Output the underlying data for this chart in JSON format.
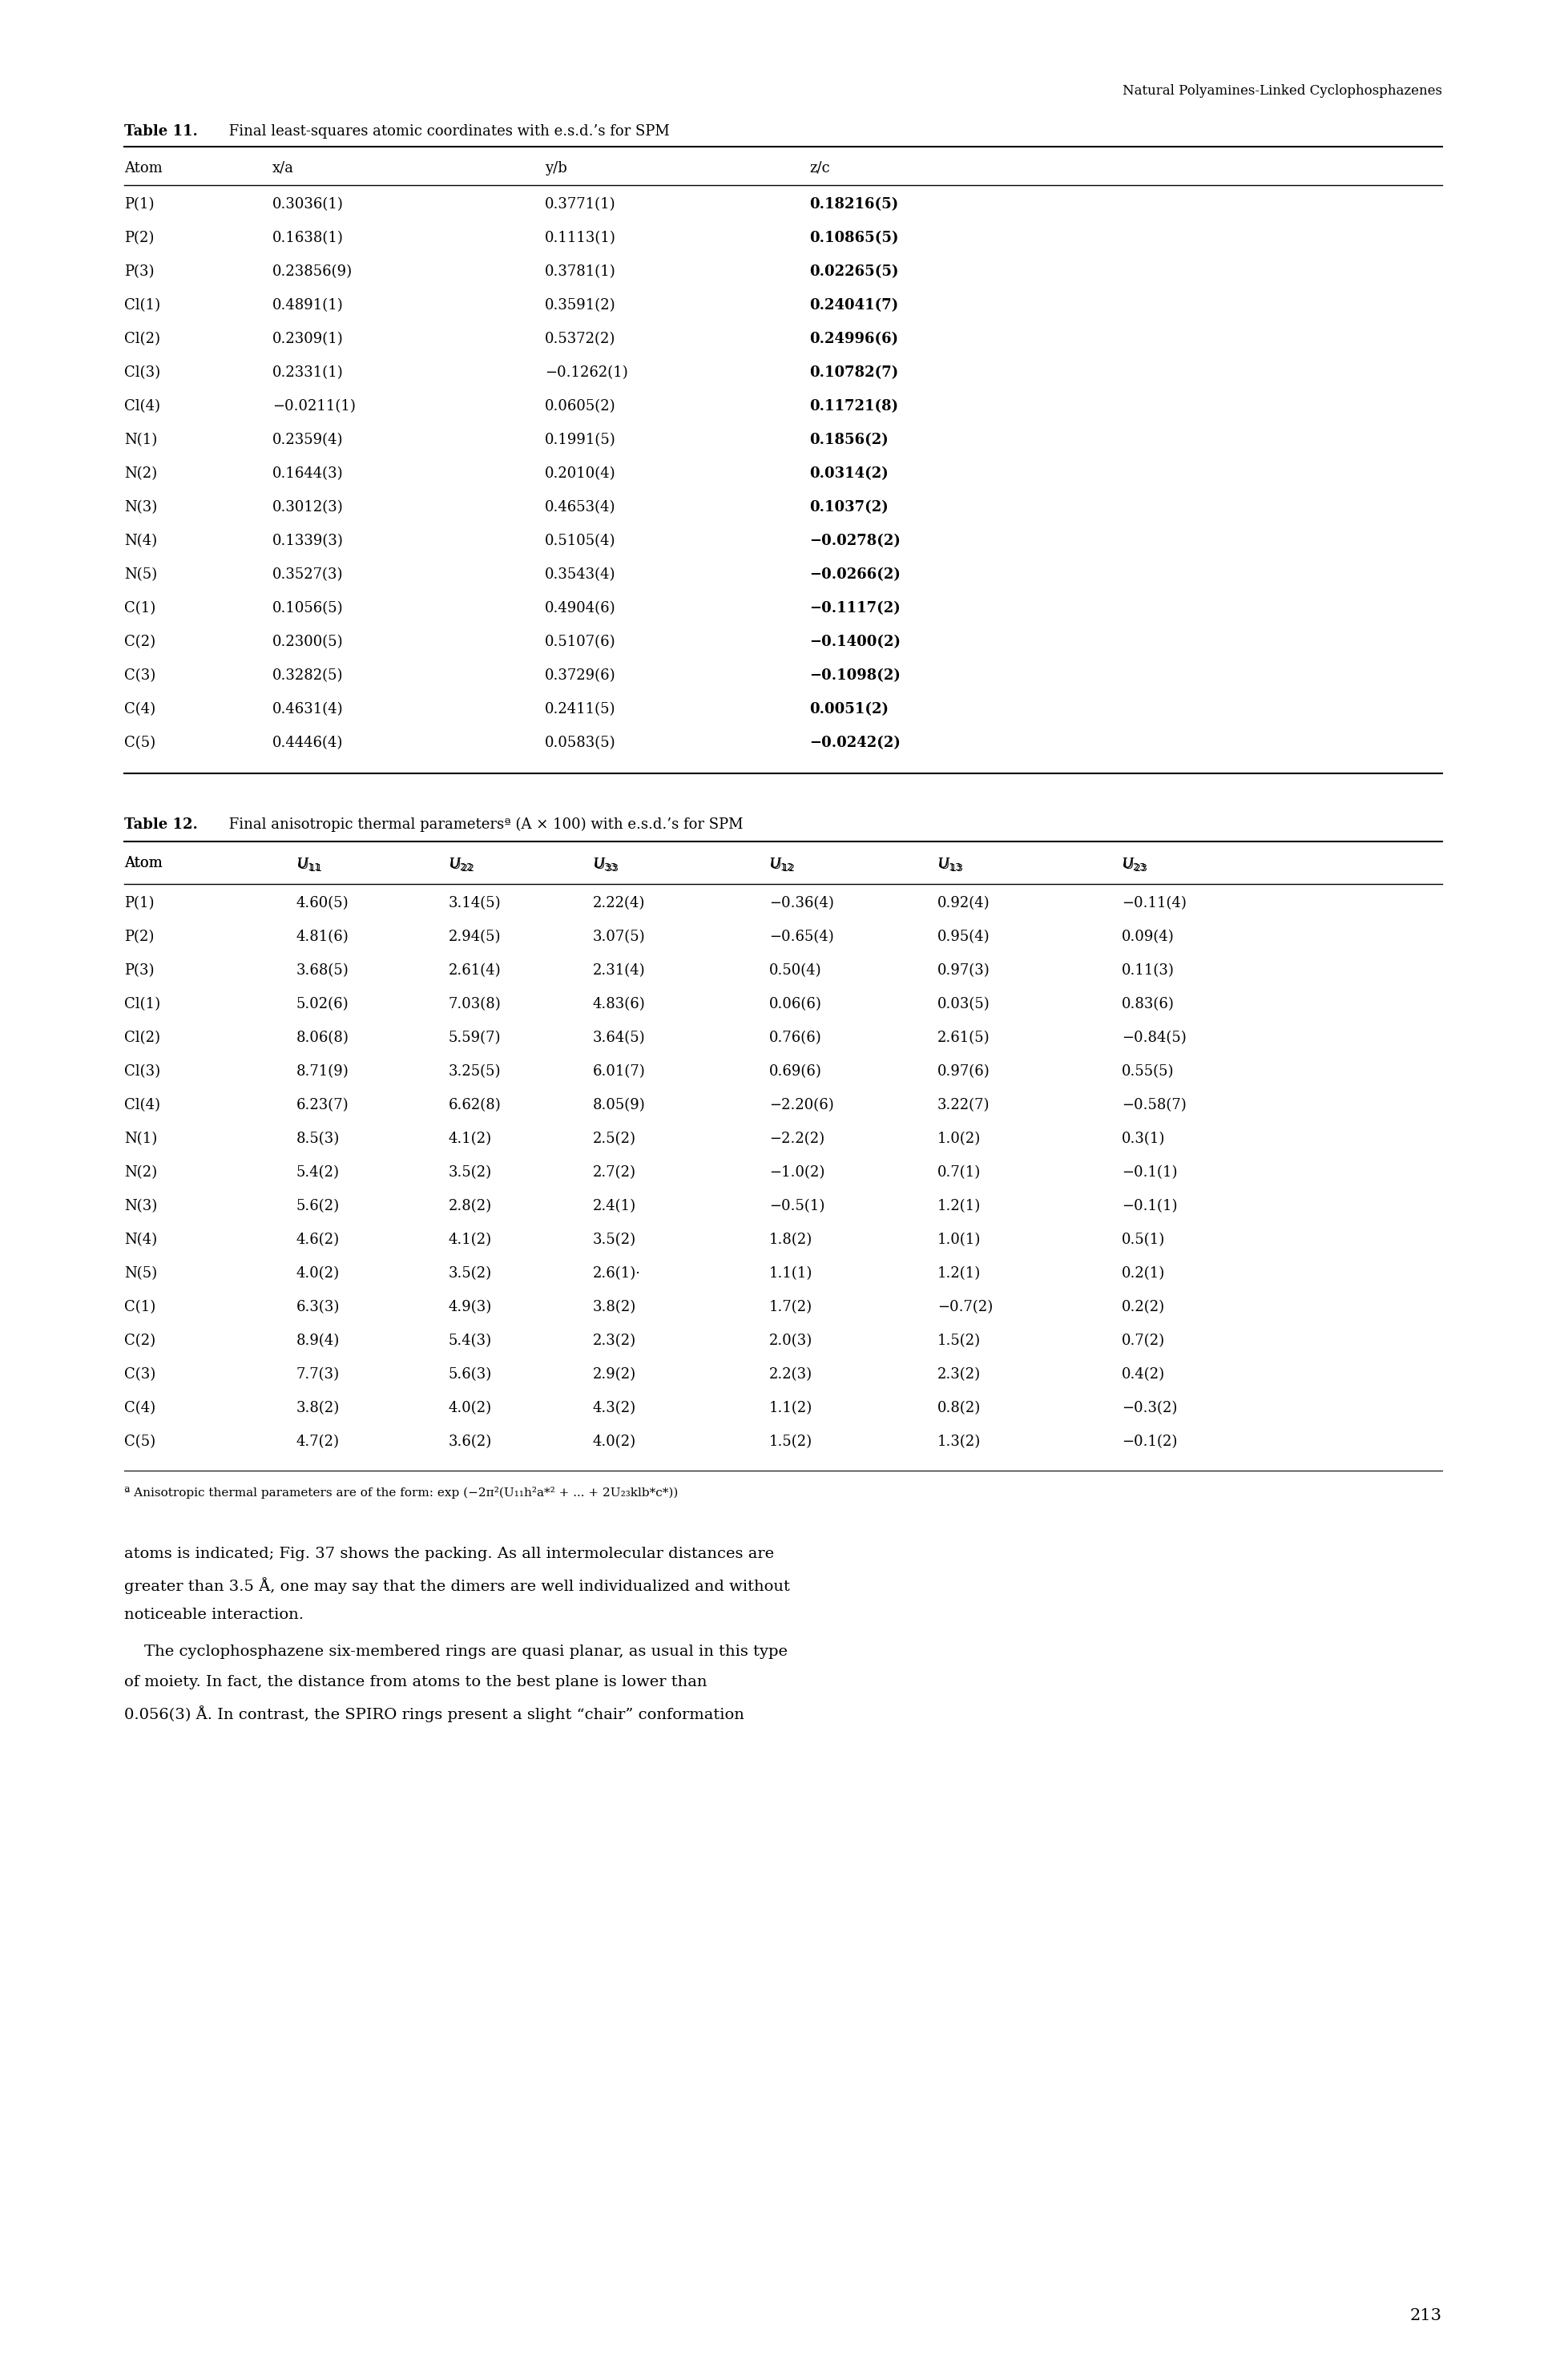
{
  "page_header": "Natural Polyamines-Linked Cyclophosphazenes",
  "table11_title_bold": "Table 11.",
  "table11_title_rest": " Final least-squares atomic coordinates with e.s.d.’s for SPM",
  "table11_headers": [
    "Atom",
    "x/a",
    "y/b",
    "z/c"
  ],
  "table11_data": [
    [
      "P(1)",
      "0.3036(1)",
      "0.3771(1)",
      "0.18216(5)"
    ],
    [
      "P(2)",
      "0.1638(1)",
      "0.1113(1)",
      "0.10865(5)"
    ],
    [
      "P(3)",
      "0.23856(9)",
      "0.3781(1)",
      "0.02265(5)"
    ],
    [
      "Cl(1)",
      "0.4891(1)",
      "0.3591(2)",
      "0.24041(7)"
    ],
    [
      "Cl(2)",
      "0.2309(1)",
      "0.5372(2)",
      "0.24996(6)"
    ],
    [
      "Cl(3)",
      "0.2331(1)",
      "−0.1262(1)",
      "0.10782(7)"
    ],
    [
      "Cl(4)",
      "−0.0211(1)",
      "0.0605(2)",
      "0.11721(8)"
    ],
    [
      "N(1)",
      "0.2359(4)",
      "0.1991(5)",
      "0.1856(2)"
    ],
    [
      "N(2)",
      "0.1644(3)",
      "0.2010(4)",
      "0.0314(2)"
    ],
    [
      "N(3)",
      "0.3012(3)",
      "0.4653(4)",
      "0.1037(2)"
    ],
    [
      "N(4)",
      "0.1339(3)",
      "0.5105(4)",
      "−0.0278(2)"
    ],
    [
      "N(5)",
      "0.3527(3)",
      "0.3543(4)",
      "−0.0266(2)"
    ],
    [
      "C(1)",
      "0.1056(5)",
      "0.4904(6)",
      "−0.1117(2)"
    ],
    [
      "C(2)",
      "0.2300(5)",
      "0.5107(6)",
      "−0.1400(2)"
    ],
    [
      "C(3)",
      "0.3282(5)",
      "0.3729(6)",
      "−0.1098(2)"
    ],
    [
      "C(4)",
      "0.4631(4)",
      "0.2411(5)",
      "0.0051(2)"
    ],
    [
      "C(5)",
      "0.4446(4)",
      "0.0583(5)",
      "−0.0242(2)"
    ]
  ],
  "table12_title_bold": "Table 12.",
  "table12_title_rest": " Final anisotropic thermal parametersª (A × 100) with e.s.d.’s for SPM",
  "table12_headers": [
    "Atom",
    "U",
    "U",
    "U",
    "U",
    "U",
    "U"
  ],
  "table12_header_subs": [
    "",
    "11",
    "22",
    "33",
    "12",
    "13",
    "23"
  ],
  "table12_data": [
    [
      "P(1)",
      "4.60(5)",
      "3.14(5)",
      "2.22(4)",
      "−0.36(4)",
      "0.92(4)",
      "−0.11(4)"
    ],
    [
      "P(2)",
      "4.81(6)",
      "2.94(5)",
      "3.07(5)",
      "−0.65(4)",
      "0.95(4)",
      "0.09(4)"
    ],
    [
      "P(3)",
      "3.68(5)",
      "2.61(4)",
      "2.31(4)",
      "0.50(4)",
      "0.97(3)",
      "0.11(3)"
    ],
    [
      "Cl(1)",
      "5.02(6)",
      "7.03(8)",
      "4.83(6)",
      "0.06(6)",
      "0.03(5)",
      "0.83(6)"
    ],
    [
      "Cl(2)",
      "8.06(8)",
      "5.59(7)",
      "3.64(5)",
      "0.76(6)",
      "2.61(5)",
      "−0.84(5)"
    ],
    [
      "Cl(3)",
      "8.71(9)",
      "3.25(5)",
      "6.01(7)",
      "0.69(6)",
      "0.97(6)",
      "0.55(5)"
    ],
    [
      "Cl(4)",
      "6.23(7)",
      "6.62(8)",
      "8.05(9)",
      "−2.20(6)",
      "3.22(7)",
      "−0.58(7)"
    ],
    [
      "N(1)",
      "8.5(3)",
      "4.1(2)",
      "2.5(2)",
      "−2.2(2)",
      "1.0(2)",
      "0.3(1)"
    ],
    [
      "N(2)",
      "5.4(2)",
      "3.5(2)",
      "2.7(2)",
      "−1.0(2)",
      "0.7(1)",
      "−0.1(1)"
    ],
    [
      "N(3)",
      "5.6(2)",
      "2.8(2)",
      "2.4(1)",
      "−0.5(1)",
      "1.2(1)",
      "−0.1(1)"
    ],
    [
      "N(4)",
      "4.6(2)",
      "4.1(2)",
      "3.5(2)",
      "1.8(2)",
      "1.0(1)",
      "0.5(1)"
    ],
    [
      "N(5)",
      "4.0(2)",
      "3.5(2)",
      "2.6(1)·",
      "1.1(1)",
      "1.2(1)",
      "0.2(1)"
    ],
    [
      "C(1)",
      "6.3(3)",
      "4.9(3)",
      "3.8(2)",
      "1.7(2)",
      "−0.7(2)",
      "0.2(2)"
    ],
    [
      "C(2)",
      "8.9(4)",
      "5.4(3)",
      "2.3(2)",
      "2.0(3)",
      "1.5(2)",
      "0.7(2)"
    ],
    [
      "C(3)",
      "7.7(3)",
      "5.6(3)",
      "2.9(2)",
      "2.2(3)",
      "2.3(2)",
      "0.4(2)"
    ],
    [
      "C(4)",
      "3.8(2)",
      "4.0(2)",
      "4.3(2)",
      "1.1(2)",
      "0.8(2)",
      "−0.3(2)"
    ],
    [
      "C(5)",
      "4.7(2)",
      "3.6(2)",
      "4.0(2)",
      "1.5(2)",
      "1.3(2)",
      "−0.1(2)"
    ]
  ],
  "table12_footnote": "ª Anisotropic thermal parameters are of the form: exp (−2π²(U₁₁h²a*² + ... + 2U₂₃klb*c*))",
  "body_para1": [
    "atoms is indicated; Fig. 37 shows the packing. As all intermolecular distances are",
    "greater than 3.5 Å, one may say that the dimers are well individualized and without",
    "noticeable interaction."
  ],
  "body_para2": [
    "    The cyclophosphazene six-membered rings are quasi planar, as usual in this type",
    "of moiety. In fact, the distance from atoms to the best plane is lower than",
    "0.056(3) Å. In contrast, the SPIRO rings present a slight “chair” conformation"
  ],
  "page_number": "213",
  "bg_color": "#ffffff"
}
